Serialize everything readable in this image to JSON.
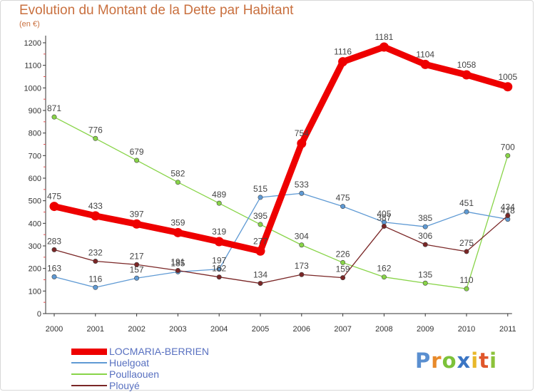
{
  "chart_data": {
    "type": "line",
    "title": "Evolution du Montant de la Dette par Habitant",
    "subtitle": "(en €)",
    "x": [
      "2000",
      "2001",
      "2002",
      "2003",
      "2004",
      "2005",
      "2006",
      "2007",
      "2008",
      "2009",
      "2010",
      "2011"
    ],
    "yticks": [
      0,
      100,
      200,
      300,
      400,
      500,
      600,
      700,
      800,
      900,
      1000,
      1100,
      1200
    ],
    "ylim": [
      0,
      1200
    ],
    "grid": false,
    "legend_position": "bottom-left",
    "series": [
      {
        "name": "Poullaouen",
        "color": "#88d448",
        "values": [
          871,
          776,
          679,
          582,
          489,
          395,
          304,
          226,
          162,
          135,
          110,
          700
        ]
      },
      {
        "name": "Huelgoat",
        "color": "#5f9ad4",
        "values": [
          163,
          116,
          157,
          185,
          197,
          515,
          533,
          475,
          405,
          385,
          451,
          418
        ]
      },
      {
        "name": "Plouyé",
        "color": "#7a2626",
        "values": [
          283,
          232,
          217,
          191,
          162,
          134,
          173,
          159,
          387,
          306,
          275,
          434
        ]
      },
      {
        "name": "LOCMARIA-BERRIEN",
        "color": "#ee0000",
        "values": [
          475,
          433,
          397,
          359,
          319,
          277,
          754,
          1116,
          1181,
          1104,
          1058,
          1005
        ]
      }
    ],
    "legend_order": [
      "LOCMARIA-BERRIEN",
      "Huelgoat",
      "Poullaouen",
      "Plouyé"
    ]
  },
  "logo": {
    "letters": [
      "P",
      "r",
      "o",
      "x",
      "i",
      "t",
      "i"
    ]
  }
}
